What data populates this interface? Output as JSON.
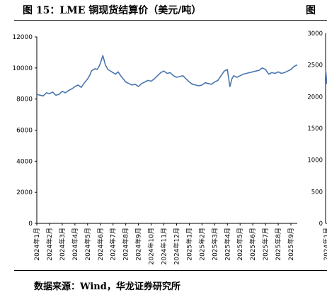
{
  "header": {
    "title": "图 15：LME 铜现货结算价（美元/吨）",
    "title_2": "图"
  },
  "footer": {
    "source": "数据来源：Wind，华龙证券研究所"
  },
  "chart_data": [
    {
      "type": "line",
      "title": "LME 铜现货结算价（美元/吨）",
      "xlabel": "",
      "ylabel": "",
      "ylim": [
        0,
        12000
      ],
      "yticks": [
        0,
        2000,
        4000,
        6000,
        8000,
        10000,
        12000
      ],
      "categories": [
        "2024年1月",
        "2024年2月",
        "2024年3月",
        "2024年4月",
        "2024年5月",
        "2024年6月",
        "2024年7月",
        "2024年8月",
        "2024年9月",
        "2024年10月",
        "2024年11月",
        "2024年12月",
        "2025年1月",
        "2025年2月",
        "2025年3月",
        "2025年4月",
        "2025年5月",
        "2025年6月",
        "2025年7月",
        "2025年8月",
        "2025年9月"
      ],
      "grid": false,
      "line_color": "#4a76b0",
      "series": [
        {
          "x": [
            0,
            0.25,
            0.5,
            0.75,
            1,
            1.25,
            1.5,
            1.75,
            2,
            2.25,
            2.5,
            2.75,
            3,
            3.25,
            3.5,
            3.75,
            4,
            4.15,
            4.3,
            4.45,
            4.6,
            4.75,
            4.9,
            5,
            5.2,
            5.4,
            5.6,
            5.8,
            6,
            6.2,
            6.4,
            6.6,
            6.8,
            7,
            7.25,
            7.5,
            7.75,
            8,
            8.25,
            8.5,
            8.75,
            9,
            9.25,
            9.5,
            9.75,
            10,
            10.25,
            10.5,
            10.75,
            11,
            11.25,
            11.5,
            11.75,
            12,
            12.25,
            12.5,
            12.75,
            13,
            13.25,
            13.5,
            13.75,
            14,
            14.25,
            14.5,
            14.75,
            15,
            15.1,
            15.2,
            15.35,
            15.5,
            15.75,
            16,
            16.25,
            16.5,
            16.75,
            17,
            17.25,
            17.5,
            17.75,
            18,
            18.25,
            18.5,
            18.75,
            19,
            19.25,
            19.5,
            19.75,
            20,
            20.25,
            20.5
          ],
          "values": [
            8300,
            8250,
            8200,
            8400,
            8350,
            8450,
            8250,
            8300,
            8500,
            8400,
            8550,
            8650,
            8800,
            8900,
            8750,
            9050,
            9300,
            9500,
            9800,
            9900,
            9950,
            9900,
            10100,
            10300,
            10800,
            10200,
            9900,
            9800,
            9700,
            9600,
            9750,
            9500,
            9300,
            9100,
            9000,
            8900,
            8950,
            8800,
            9000,
            9100,
            9200,
            9150,
            9300,
            9500,
            9700,
            9800,
            9650,
            9700,
            9500,
            9400,
            9450,
            9500,
            9300,
            9100,
            8950,
            8900,
            8850,
            8900,
            9050,
            9000,
            8950,
            9100,
            9200,
            9500,
            9800,
            9900,
            9300,
            8800,
            9300,
            9500,
            9400,
            9500,
            9600,
            9650,
            9700,
            9750,
            9800,
            9850,
            10000,
            9900,
            9600,
            9700,
            9650,
            9750,
            9650,
            9700,
            9800,
            9900,
            10100,
            10200
          ]
        }
      ]
    },
    {
      "type": "line",
      "title": "",
      "ylim": [
        0,
        3000
      ],
      "yticks": [
        0,
        500,
        1000,
        1500,
        2000,
        2500,
        3000
      ],
      "categories": [
        "2024年1月"
      ],
      "series": [
        {
          "x": [
            0,
            0.3
          ],
          "values": [
            2450,
            2200
          ]
        }
      ]
    }
  ]
}
